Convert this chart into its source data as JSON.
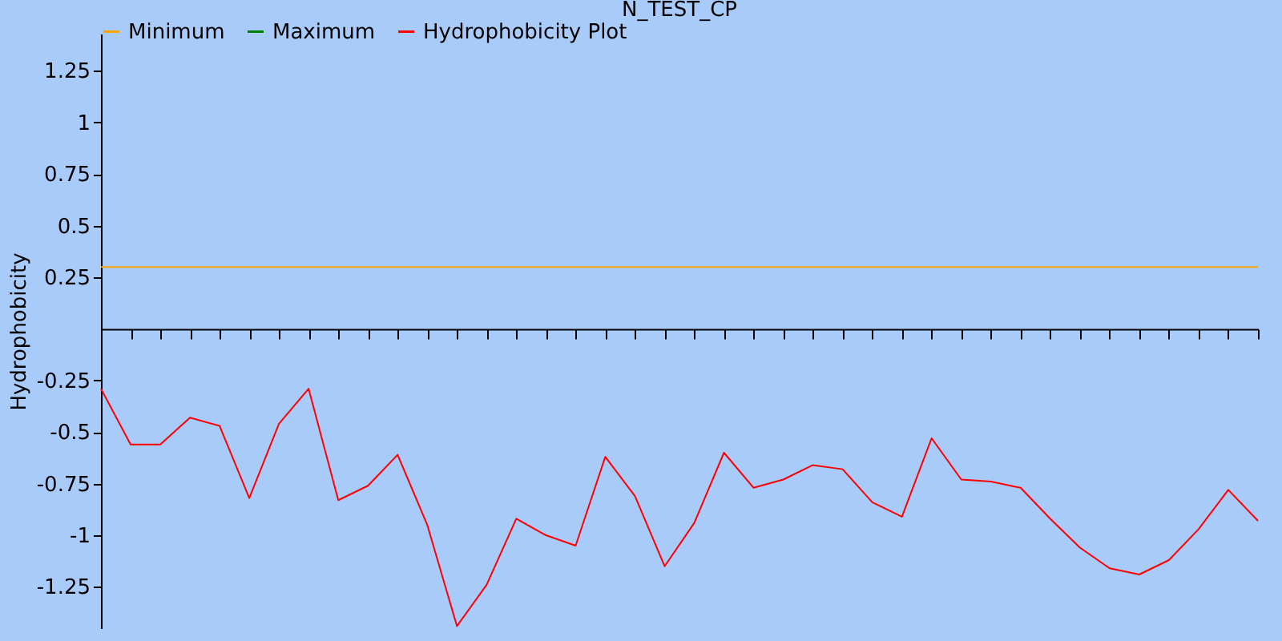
{
  "chart_data": {
    "type": "line",
    "title": "N_TEST_CP",
    "ylabel": "Hydrophobicity",
    "categories": [
      null,
      null,
      null,
      null,
      null,
      null,
      null,
      null,
      null,
      null,
      null,
      null,
      null,
      null,
      null,
      null,
      null,
      null,
      null,
      null,
      null,
      null,
      null,
      null,
      null,
      null,
      null,
      null,
      null,
      null,
      null,
      null,
      null,
      null,
      null,
      null,
      null,
      null,
      null,
      null
    ],
    "series": [
      {
        "name": "Minimum",
        "color": "#ffa500",
        "values": [
          0.3,
          0.3,
          0.3,
          0.3,
          0.3,
          0.3,
          0.3,
          0.3,
          0.3,
          0.3,
          0.3,
          0.3,
          0.3,
          0.3,
          0.3,
          0.3,
          0.3,
          0.3,
          0.3,
          0.3,
          0.3,
          0.3,
          0.3,
          0.3,
          0.3,
          0.3,
          0.3,
          0.3,
          0.3,
          0.3,
          0.3,
          0.3,
          0.3,
          0.3,
          0.3,
          0.3,
          0.3,
          0.3,
          0.3,
          0.3
        ]
      },
      {
        "name": "Maximum",
        "color": "#008000",
        "values": [
          null,
          null,
          null,
          null,
          null,
          null,
          null,
          null,
          null,
          null,
          null,
          null,
          null,
          null,
          null,
          null,
          null,
          null,
          null,
          null,
          null,
          null,
          null,
          null,
          null,
          null,
          null,
          null,
          null,
          null,
          null,
          null,
          null,
          null,
          null,
          null,
          null,
          null,
          null,
          null
        ]
      },
      {
        "name": "Hydrophobicity Plot",
        "color": "#ff0000",
        "values": [
          -0.29,
          -0.56,
          -0.56,
          -0.43,
          -0.47,
          -0.82,
          -0.46,
          -0.29,
          -0.83,
          -0.76,
          -0.61,
          -0.95,
          -1.44,
          -1.24,
          -0.92,
          -1.0,
          -1.05,
          -0.62,
          -0.81,
          -1.15,
          -0.94,
          -0.6,
          -0.77,
          -0.73,
          -0.66,
          -0.68,
          -0.84,
          -0.91,
          -0.53,
          -0.73,
          -0.74,
          -0.77,
          -0.92,
          -1.06,
          -1.16,
          -1.19,
          -1.12,
          -0.97,
          -0.78,
          -0.93
        ]
      }
    ],
    "ylim": [
      -1.45,
      1.43
    ],
    "yticks": [
      -1.25,
      -1,
      -0.75,
      -0.5,
      -0.25,
      0.25,
      0.5,
      0.75,
      1,
      1.25
    ],
    "grid": false,
    "legend": "top",
    "line_style": "solid"
  }
}
